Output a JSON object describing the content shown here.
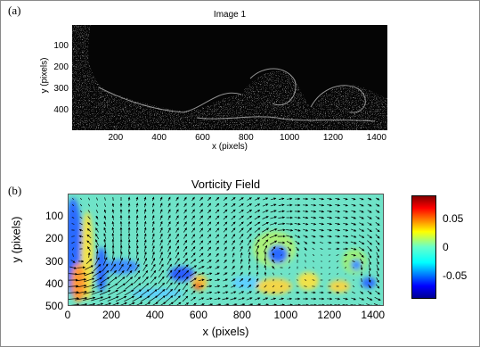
{
  "panel_a": {
    "label": "(a)",
    "title": "Image 1",
    "xlabel": "x (pixels)",
    "ylabel": "y (pixels)",
    "xticks": [
      "200",
      "400",
      "600",
      "800",
      "1000",
      "1200",
      "1400"
    ],
    "yticks": [
      "100",
      "200",
      "300",
      "400"
    ]
  },
  "panel_b": {
    "label": "(b)",
    "title": "Vorticity Field",
    "xlabel": "x (pixels)",
    "ylabel": "y (pixels)",
    "xticks": [
      "0",
      "200",
      "400",
      "600",
      "800",
      "1000",
      "1200",
      "1400"
    ],
    "yticks": [
      "100",
      "200",
      "300",
      "400",
      "500"
    ],
    "colorbar_ticks": [
      "0.05",
      "0",
      "-0.05"
    ]
  },
  "chart_data": [
    {
      "type": "heatmap",
      "title": "Image 1",
      "xlabel": "x (pixels)",
      "ylabel": "y (pixels)",
      "xlim": [
        0,
        1450
      ],
      "ylim": [
        490,
        0
      ],
      "colormap": "gray"
    },
    {
      "type": "heatmap",
      "title": "Vorticity Field",
      "xlabel": "x (pixels)",
      "ylabel": "y (pixels)",
      "xlim": [
        0,
        1450
      ],
      "ylim": [
        500,
        0
      ],
      "colormap": "jet",
      "clim": [
        -0.09,
        0.09
      ],
      "overlay": "velocity vectors",
      "vortex_centers": [
        {
          "x": 960,
          "y": 290
        },
        {
          "x": 1300,
          "y": 340
        }
      ]
    }
  ]
}
